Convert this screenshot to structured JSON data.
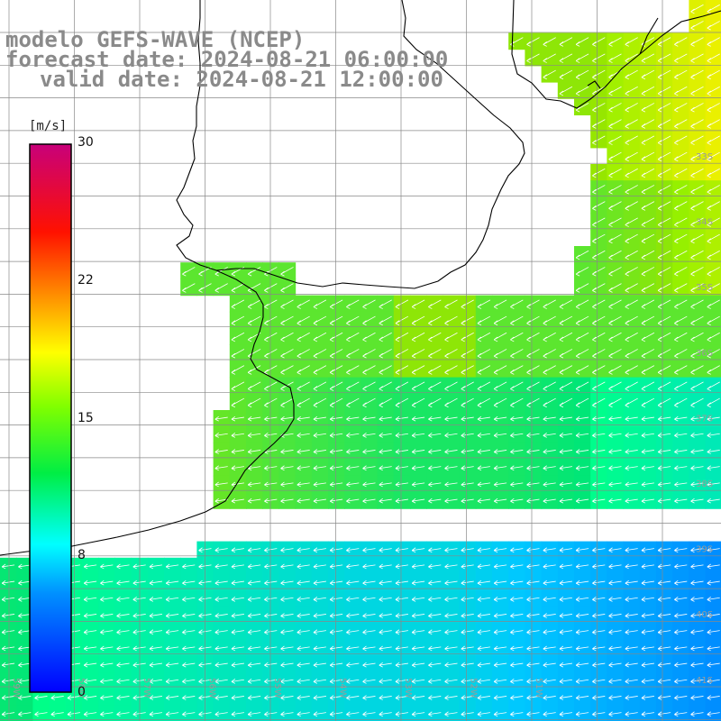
{
  "title": {
    "model": "modelo GEFS-WAVE (NCEP)",
    "forecast_date": "forecast date: 2024-08-21 06:00:00",
    "valid_date": "valid date: 2024-08-21 12:00:00"
  },
  "colorbar": {
    "unit": "[m/s]",
    "ticks": [
      "0",
      "8",
      "15",
      "22",
      "30"
    ],
    "range": [
      0,
      30
    ],
    "colors": [
      "#0000ff",
      "#00aaff",
      "#00ffff",
      "#00ee00",
      "#ffff00",
      "#ff8800",
      "#ff0000",
      "#c8007a"
    ]
  },
  "latitude_labels": [
    "33S",
    "34S",
    "35S",
    "36S",
    "37S",
    "38S",
    "39S",
    "40S",
    "41S"
  ],
  "longitude_labels": [
    "59W",
    "58W",
    "57W",
    "56W",
    "55W",
    "54W",
    "53W",
    "52W",
    "51W"
  ],
  "colors": {
    "land": "#ffffff",
    "coast": "#000000",
    "grid": "#888888",
    "arrow": "#ffffff",
    "title": "#8a8a8a"
  }
}
